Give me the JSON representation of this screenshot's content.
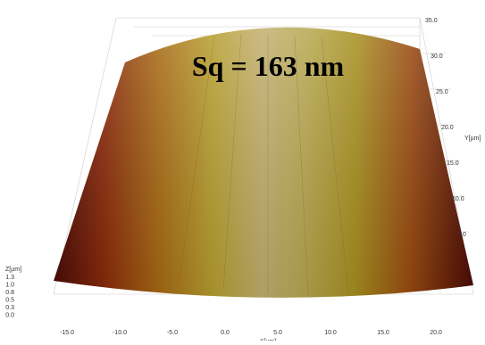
{
  "annotation": "Sq = 163 nm",
  "x_axis": {
    "label": "X[µm]",
    "ticks": [
      "-15.0",
      "-10.0",
      "-5.0",
      "0.0",
      "5.0",
      "10.0",
      "15.0",
      "20.0"
    ]
  },
  "y_axis": {
    "label": "Y[µm]",
    "ticks": [
      "5.0",
      "10.0",
      "15.0",
      "20.0",
      "25.0",
      "30.0",
      "35.0"
    ]
  },
  "z_axis": {
    "label": "Z[µm]",
    "ticks": [
      "1.3",
      "1.0",
      "0.8",
      "0.5",
      "0.3",
      "0.0"
    ]
  }
}
